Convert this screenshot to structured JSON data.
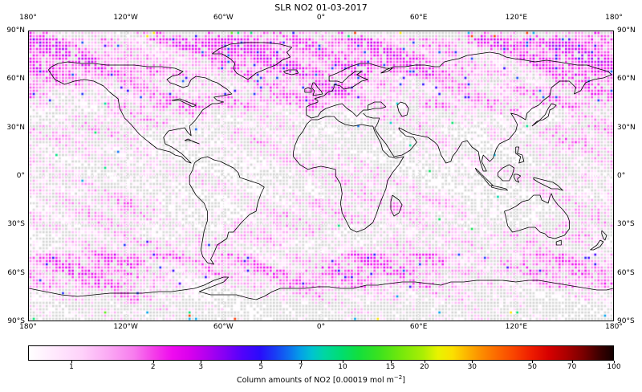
{
  "title": "SLR NO2 01-03-2017",
  "chart_data": {
    "type": "heatmap",
    "subtype": "gridded-scatter-world-map",
    "title": "SLR NO2 01-03-2017",
    "date_shown": "01-03-2017",
    "projection": "equirectangular",
    "grid_resolution_deg": 2,
    "lon_axis": {
      "ticks": [
        "180°",
        "120°W",
        "60°W",
        "0°",
        "60°E",
        "120°E",
        "180°"
      ],
      "range": [
        -180,
        180
      ]
    },
    "lat_axis": {
      "ticks": [
        "90°N",
        "60°N",
        "30°N",
        "0°",
        "30°S",
        "60°S",
        "90°S"
      ],
      "range": [
        90,
        -90
      ]
    },
    "colorbar": {
      "label_prefix": "Column amounts of NO2 [0.00019 mol m",
      "label_superscript": "−2",
      "label_suffix": "]",
      "scale": "log",
      "vmin": 0.692,
      "vmax": 100,
      "tick_values": [
        1,
        2,
        3,
        5,
        7,
        10,
        15,
        20,
        30,
        50,
        70,
        100
      ],
      "gradient_stops": [
        [
          0.0,
          "#ffffff"
        ],
        [
          0.045,
          "#ffe8fd"
        ],
        [
          0.09,
          "#fed2fa"
        ],
        [
          0.135,
          "#fbaaf4"
        ],
        [
          0.18,
          "#f77cee"
        ],
        [
          0.215,
          "#f43ce9"
        ],
        [
          0.245,
          "#ef0bef"
        ],
        [
          0.275,
          "#d900ee"
        ],
        [
          0.305,
          "#b200ef"
        ],
        [
          0.335,
          "#8500f5"
        ],
        [
          0.365,
          "#5202fb"
        ],
        [
          0.395,
          "#2b0bfb"
        ],
        [
          0.42,
          "#1a3af5"
        ],
        [
          0.445,
          "#0d6ff0"
        ],
        [
          0.465,
          "#04a0e7"
        ],
        [
          0.485,
          "#00c4cf"
        ],
        [
          0.505,
          "#00d6a4"
        ],
        [
          0.535,
          "#00dd70"
        ],
        [
          0.565,
          "#13df3c"
        ],
        [
          0.6,
          "#3ce21e"
        ],
        [
          0.635,
          "#71e80c"
        ],
        [
          0.675,
          "#abee04"
        ],
        [
          0.7,
          "#e8f300"
        ],
        [
          0.725,
          "#fbe000"
        ],
        [
          0.75,
          "#fcb400"
        ],
        [
          0.775,
          "#fc8c00"
        ],
        [
          0.8,
          "#fc6a00"
        ],
        [
          0.83,
          "#f94400"
        ],
        [
          0.86,
          "#ee1c00"
        ],
        [
          0.89,
          "#d60000"
        ],
        [
          0.92,
          "#ab0000"
        ],
        [
          0.95,
          "#780000"
        ],
        [
          0.975,
          "#400000"
        ],
        [
          1.0,
          "#140000"
        ]
      ]
    },
    "style_colors": {
      "background": "#ffffff",
      "text": "#000000",
      "coastline": "#000000",
      "graticule": "#bbbbbb",
      "nodata_dot": "#d9d9d9"
    },
    "approx_zonal_mean_by_lat_band": {
      "90N-62N": 2.0,
      "62N-42N": 1.5,
      "42N-15N": 1.2,
      "15N-15S": 1.0,
      "15S-48S": 1.2,
      "48S-71S": 1.6,
      "71S-90S": 0.9
    },
    "notes": "Global 2-degree gridded scatter of NO2 slant column amounts; mostly pale pink to magenta (values ~1-3), dense darker magenta/purple with navy outliers at high northern latitudes and in a 55S-70S band, near-white patches over deserts and subtropical oceans, grey dots where no data."
  }
}
